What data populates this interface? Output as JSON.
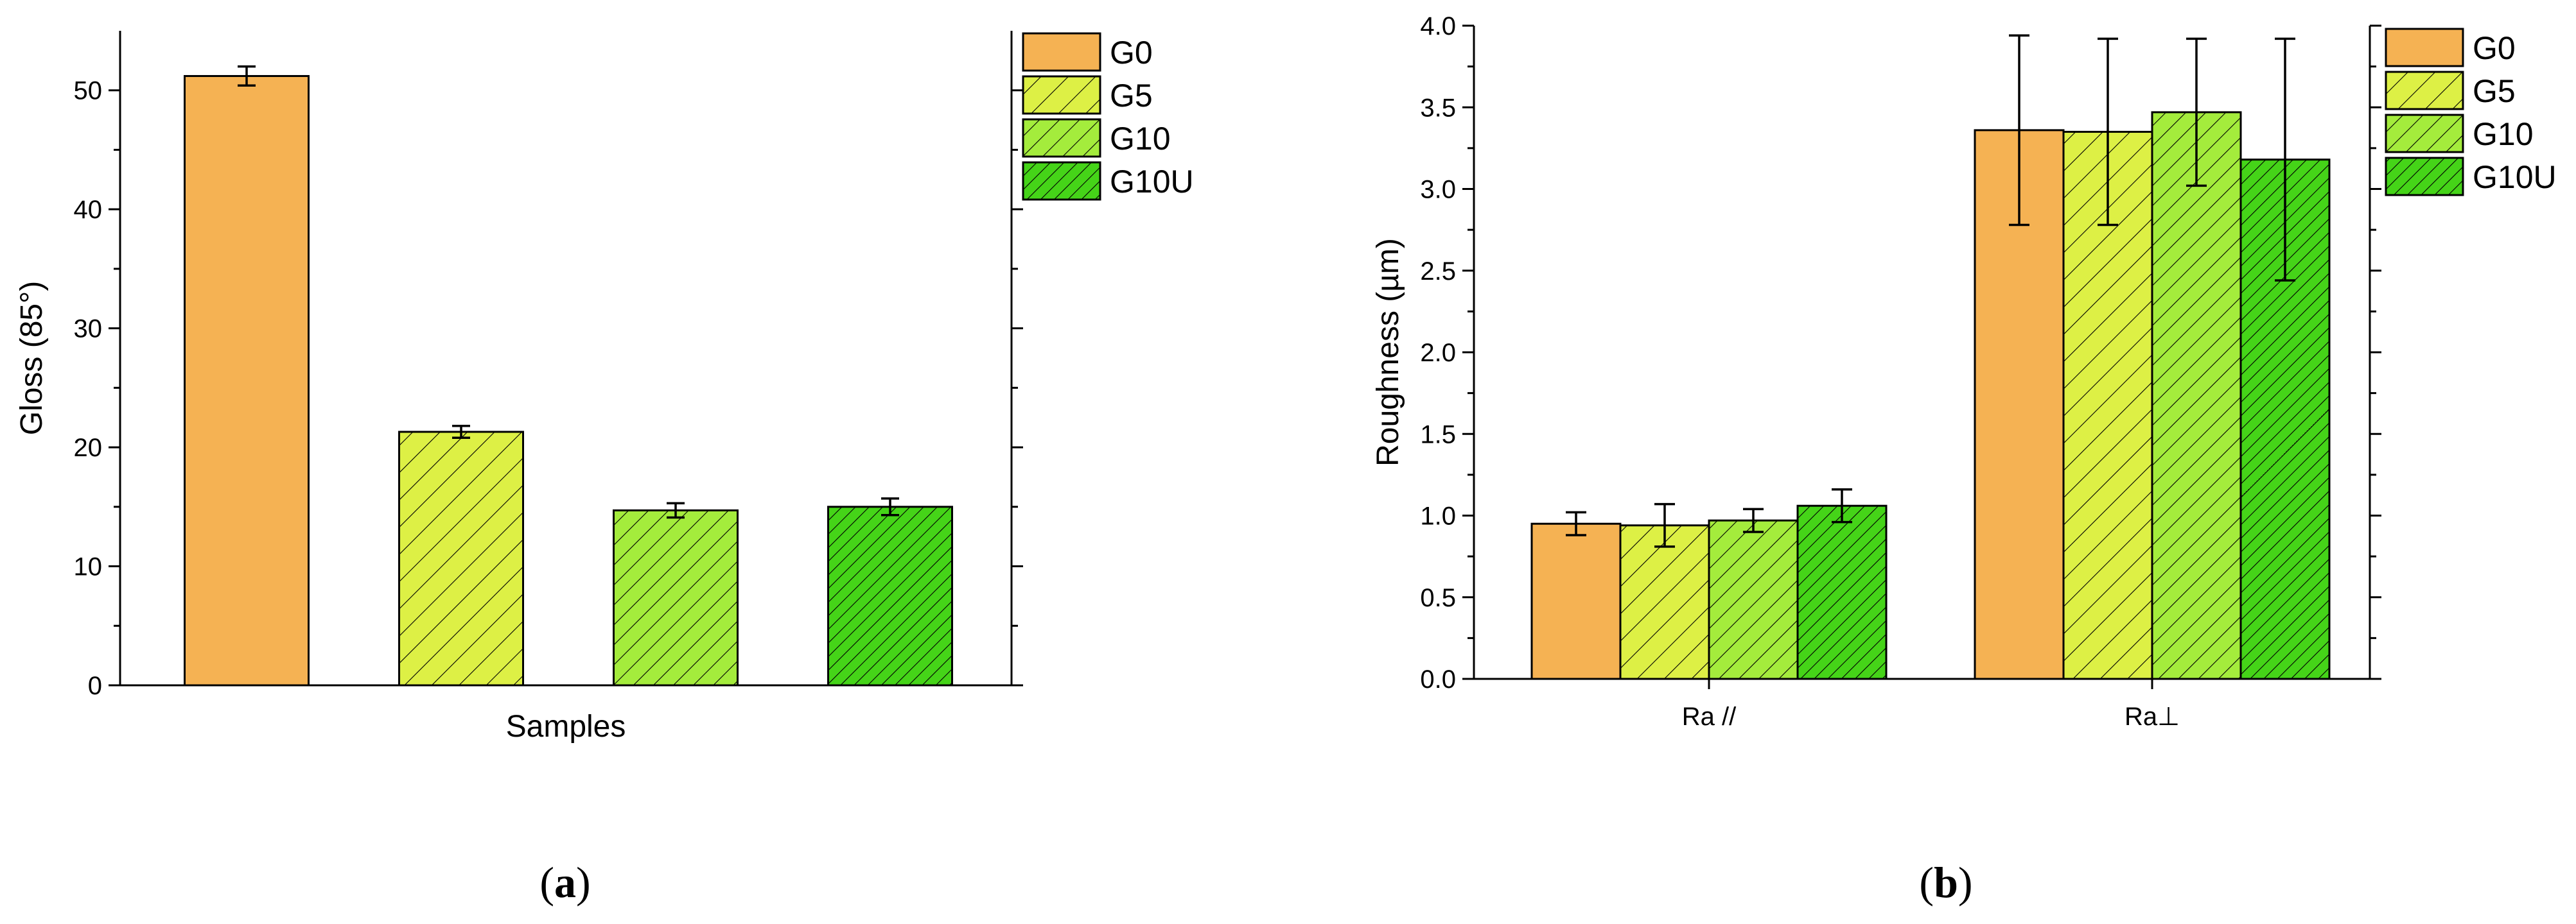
{
  "colors": {
    "G0": "#F5B253",
    "G5": "#DDF045",
    "G10": "#A4EC3C",
    "G10U": "#45D418"
  },
  "panel_labels": {
    "a_letter": "a",
    "b_letter": "b"
  },
  "chart_data": [
    {
      "type": "bar",
      "categories": [
        ""
      ],
      "series": [
        {
          "name": "G0",
          "values": [
            51.2
          ],
          "errors": [
            0.8
          ],
          "hatch": "none"
        },
        {
          "name": "G5",
          "values": [
            21.3
          ],
          "errors": [
            0.5
          ],
          "hatch": "sparse"
        },
        {
          "name": "G10",
          "values": [
            14.7
          ],
          "errors": [
            0.6
          ],
          "hatch": "medium"
        },
        {
          "name": "G10U",
          "values": [
            15.0
          ],
          "errors": [
            0.7
          ],
          "hatch": "dense"
        }
      ],
      "xlabel": "Samples",
      "ylabel": "Gloss (85°)",
      "ylim": [
        0,
        55
      ],
      "yticks": [
        0,
        10,
        20,
        30,
        40,
        50
      ],
      "legend_position": "right",
      "grid": false
    },
    {
      "type": "bar",
      "categories": [
        "Ra //",
        "Ra⊥"
      ],
      "series": [
        {
          "name": "G0",
          "values": [
            0.95,
            3.36
          ],
          "errors": [
            0.07,
            0.58
          ],
          "hatch": "none"
        },
        {
          "name": "G5",
          "values": [
            0.94,
            3.35
          ],
          "errors": [
            0.13,
            0.57
          ],
          "hatch": "sparse"
        },
        {
          "name": "G10",
          "values": [
            0.97,
            3.47
          ],
          "errors": [
            0.07,
            0.45
          ],
          "hatch": "medium"
        },
        {
          "name": "G10U",
          "values": [
            1.06,
            3.18
          ],
          "errors": [
            0.1,
            0.74
          ],
          "hatch": "dense"
        }
      ],
      "xlabel": "",
      "ylabel": "Roughness (µm)",
      "ylim": [
        0,
        4.0
      ],
      "yticks": [
        "0.0",
        "0.5",
        "1.0",
        "1.5",
        "2.0",
        "2.5",
        "3.0",
        "3.5",
        "4.0"
      ],
      "legend_position": "right",
      "grid": false
    }
  ]
}
